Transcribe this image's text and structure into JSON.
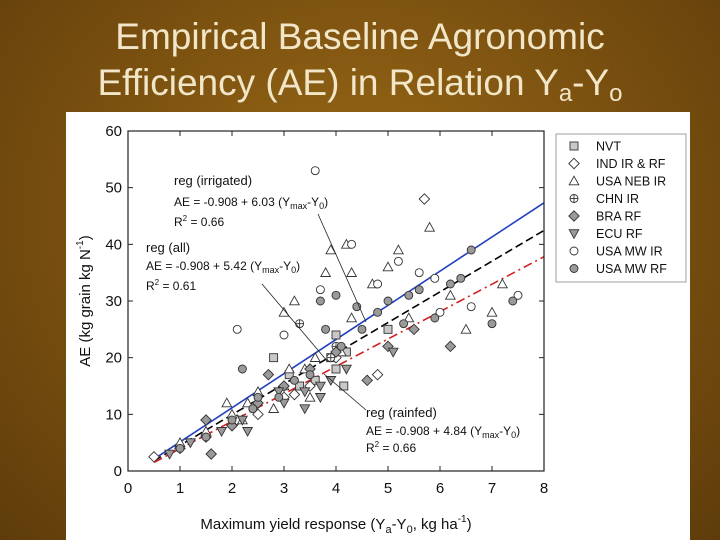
{
  "title": {
    "line1": "Empirical Baseline Agronomic",
    "line2_main": "Efficiency (AE) in Relation Y",
    "sub_a": "a",
    "dash": "-Y",
    "sub_o": "o"
  },
  "chart_data": {
    "type": "scatter",
    "xlabel": {
      "main": "Maximum yield response (Y",
      "sub_a": "a",
      "mid": "-Y",
      "sub_0": "0",
      "tail": ", kg ha",
      "sup": "-1",
      "end": ")"
    },
    "ylabel": {
      "main": "AE (kg grain kg N",
      "sup": "-1",
      "end": ")"
    },
    "xlim": [
      0,
      8
    ],
    "ylim": [
      0,
      60
    ],
    "xticks": [
      "0",
      "1",
      "2",
      "3",
      "4",
      "5",
      "6",
      "7",
      "8"
    ],
    "yticks": [
      "0",
      "10",
      "20",
      "30",
      "40",
      "50",
      "60"
    ],
    "legend_position": "top-right",
    "legend": [
      {
        "label": "NVT",
        "marker": "square",
        "fill": "#c8c8c8"
      },
      {
        "label": "IND IR & RF",
        "marker": "diamond",
        "fill": "#ffffff"
      },
      {
        "label": "USA NEB IR",
        "marker": "triangle-up",
        "fill": "#ffffff"
      },
      {
        "label": "CHN IR",
        "marker": "circle-plus",
        "fill": "#ffffff"
      },
      {
        "label": "BRA RF",
        "marker": "diamond",
        "fill": "#9a9a9a"
      },
      {
        "label": "ECU RF",
        "marker": "triangle-down",
        "fill": "#9a9a9a"
      },
      {
        "label": "USA MW IR",
        "marker": "circle",
        "fill": "#ffffff"
      },
      {
        "label": "USA MW RF",
        "marker": "circle",
        "fill": "#9a9a9a"
      }
    ],
    "regressions": [
      {
        "name": "reg (irrigated)",
        "equation_main": "AE = -0.908 + 6.03 (Y",
        "equation_sub": "max",
        "equation_tail": "-Y",
        "equation_sub0": "0",
        "equation_end": ")",
        "r2_label": "R",
        "r2_sup": "2",
        "r2_value": " = 0.66",
        "intercept": -0.908,
        "slope": 6.03,
        "color": "#1f3fbf",
        "style": "solid"
      },
      {
        "name": "reg (all)",
        "equation_main": "AE = -0.908 + 5.42 (Y",
        "equation_sub": "max",
        "equation_tail": "-Y",
        "equation_sub0": "0",
        "equation_end": ")",
        "r2_label": "R",
        "r2_sup": "2",
        "r2_value": " = 0.61",
        "intercept": -0.908,
        "slope": 5.42,
        "color": "#000000",
        "style": "dashed"
      },
      {
        "name": "reg (rainfed)",
        "equation_main": "AE = -0.908 + 4.84 (Y",
        "equation_sub": "max",
        "equation_tail": "-Y",
        "equation_sub0": "0",
        "equation_end": ")",
        "r2_label": "R",
        "r2_sup": "2",
        "r2_value": " = 0.66",
        "intercept": -0.908,
        "slope": 4.84,
        "color": "#d42020",
        "style": "dashdot"
      }
    ],
    "series": [
      {
        "name": "NVT",
        "marker": "square",
        "fill": "#c8c8c8",
        "points": [
          [
            4.0,
            18
          ],
          [
            4.15,
            15
          ],
          [
            4.0,
            24
          ],
          [
            3.6,
            16
          ],
          [
            4.2,
            21
          ],
          [
            5.0,
            25
          ],
          [
            3.1,
            17
          ],
          [
            3.3,
            15
          ],
          [
            2.8,
            20
          ],
          [
            3.9,
            20
          ]
        ]
      },
      {
        "name": "IND IR & RF",
        "marker": "diamond",
        "fill": "#ffffff",
        "points": [
          [
            0.5,
            2.5
          ],
          [
            1.0,
            4
          ],
          [
            1.5,
            6
          ],
          [
            2.0,
            8
          ],
          [
            2.5,
            10
          ],
          [
            3.0,
            13
          ],
          [
            3.5,
            15
          ],
          [
            4.0,
            20
          ],
          [
            3.2,
            13.5
          ],
          [
            5.7,
            48
          ],
          [
            4.8,
            17
          ],
          [
            2.1,
            9
          ]
        ]
      },
      {
        "name": "USA NEB IR",
        "marker": "triangle-up",
        "fill": "#ffffff",
        "points": [
          [
            1.0,
            5
          ],
          [
            1.5,
            7
          ],
          [
            2.0,
            10
          ],
          [
            2.3,
            12
          ],
          [
            2.5,
            14
          ],
          [
            2.8,
            11
          ],
          [
            3.0,
            15
          ],
          [
            3.2,
            30
          ],
          [
            3.4,
            18
          ],
          [
            3.6,
            20
          ],
          [
            3.8,
            35
          ],
          [
            3.9,
            39
          ],
          [
            4.2,
            40
          ],
          [
            4.3,
            35
          ],
          [
            4.7,
            33
          ],
          [
            5.0,
            36
          ],
          [
            5.2,
            39
          ],
          [
            5.8,
            43
          ],
          [
            6.2,
            31
          ],
          [
            7.0,
            28
          ],
          [
            7.2,
            33
          ],
          [
            6.5,
            25
          ],
          [
            2.2,
            9
          ],
          [
            3.1,
            18
          ],
          [
            3.5,
            13
          ],
          [
            4.1,
            21
          ],
          [
            4.3,
            27
          ],
          [
            5.4,
            27
          ],
          [
            3.0,
            28
          ],
          [
            1.9,
            12
          ]
        ]
      },
      {
        "name": "CHN IR",
        "marker": "circle-plus",
        "fill": "#ffffff",
        "points": [
          [
            3.3,
            26
          ],
          [
            4.0,
            22
          ],
          [
            3.9,
            20
          ]
        ]
      },
      {
        "name": "BRA RF",
        "marker": "diamond",
        "fill": "#9a9a9a",
        "points": [
          [
            1.5,
            9
          ],
          [
            2.0,
            8
          ],
          [
            2.5,
            12
          ],
          [
            3.0,
            15
          ],
          [
            3.5,
            18
          ],
          [
            4.0,
            21
          ],
          [
            4.6,
            16
          ],
          [
            5.0,
            22
          ],
          [
            5.5,
            25
          ],
          [
            6.2,
            22
          ],
          [
            2.7,
            17
          ],
          [
            1.6,
            3
          ]
        ]
      },
      {
        "name": "ECU RF",
        "marker": "triangle-down",
        "fill": "#9a9a9a",
        "points": [
          [
            0.8,
            3
          ],
          [
            1.2,
            5
          ],
          [
            1.8,
            7
          ],
          [
            2.2,
            9
          ],
          [
            2.3,
            7
          ],
          [
            3.0,
            12
          ],
          [
            3.4,
            11
          ],
          [
            3.7,
            13
          ],
          [
            4.2,
            18
          ],
          [
            2.9,
            14
          ],
          [
            3.7,
            15
          ],
          [
            5.1,
            21
          ],
          [
            3.4,
            14
          ],
          [
            3.9,
            16
          ]
        ]
      },
      {
        "name": "USA MW IR",
        "marker": "circle",
        "fill": "#ffffff",
        "points": [
          [
            3.6,
            53
          ],
          [
            2.1,
            25
          ],
          [
            3.0,
            24
          ],
          [
            3.7,
            32
          ],
          [
            4.8,
            33
          ],
          [
            5.6,
            35
          ],
          [
            5.9,
            34
          ],
          [
            6.0,
            28
          ],
          [
            6.6,
            29
          ],
          [
            7.5,
            31
          ],
          [
            4.3,
            40
          ],
          [
            5.2,
            37
          ]
        ]
      },
      {
        "name": "USA MW RF",
        "marker": "circle",
        "fill": "#9a9a9a",
        "points": [
          [
            1.0,
            4
          ],
          [
            1.5,
            6
          ],
          [
            2.0,
            9
          ],
          [
            2.5,
            13
          ],
          [
            2.9,
            13
          ],
          [
            3.2,
            16
          ],
          [
            3.5,
            17
          ],
          [
            3.7,
            30
          ],
          [
            4.0,
            31
          ],
          [
            4.4,
            29
          ],
          [
            4.5,
            25
          ],
          [
            4.8,
            28
          ],
          [
            5.0,
            30
          ],
          [
            5.3,
            26
          ],
          [
            5.6,
            32
          ],
          [
            5.9,
            27
          ],
          [
            6.2,
            33
          ],
          [
            6.4,
            34
          ],
          [
            6.6,
            39
          ],
          [
            7.0,
            26
          ],
          [
            7.4,
            30
          ],
          [
            3.8,
            25
          ],
          [
            2.2,
            18
          ],
          [
            2.4,
            11
          ],
          [
            4.1,
            22
          ],
          [
            5.4,
            31
          ]
        ]
      }
    ]
  }
}
